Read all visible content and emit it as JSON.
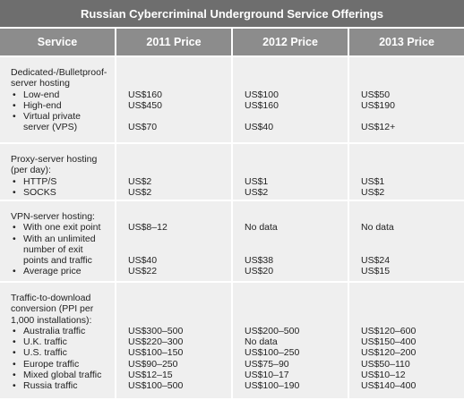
{
  "title": "Russian Cybercriminal Underground Service Offerings",
  "columns": [
    "Service",
    "2011 Price",
    "2012 Price",
    "2013 Price"
  ],
  "rows": [
    {
      "heading": "Dedicated-/Bulletproof-server hosting",
      "items": [
        {
          "label": "Low-end",
          "prices": [
            "US$160",
            "US$100",
            "US$50"
          ]
        },
        {
          "label": "High-end",
          "prices": [
            "US$450",
            "US$160",
            "US$190"
          ]
        },
        {
          "label": "Virtual private server (VPS)",
          "prices": [
            "US$70",
            "US$40",
            "US$12+"
          ]
        }
      ]
    },
    {
      "heading": "Proxy-server hosting (per day):",
      "items": [
        {
          "label": "HTTP/S",
          "prices": [
            "US$2",
            "US$1",
            "US$1"
          ]
        },
        {
          "label": "SOCKS",
          "prices": [
            "US$2",
            "US$2",
            "US$2"
          ]
        }
      ]
    },
    {
      "heading": "VPN-server hosting:",
      "items": [
        {
          "label": "With one exit point",
          "prices": [
            "US$8–12",
            "No data",
            "No data"
          ]
        },
        {
          "label": "With an unlimited number of exit points and traffic",
          "prices": [
            "US$40",
            "US$38",
            "US$24"
          ]
        },
        {
          "label": "Average price",
          "prices": [
            "US$22",
            "US$20",
            "US$15"
          ]
        }
      ]
    },
    {
      "heading": "Traffic-to-download conversion (PPI per 1,000 installations):",
      "items": [
        {
          "label": "Australia traffic",
          "prices": [
            "US$300–500",
            "US$200–500",
            "US$120–600"
          ]
        },
        {
          "label": "U.K. traffic",
          "prices": [
            "US$220–300",
            "No data",
            "US$150–400"
          ]
        },
        {
          "label": "U.S. traffic",
          "prices": [
            "US$100–150",
            "US$100–250",
            "US$120–200"
          ]
        },
        {
          "label": "Europe traffic",
          "prices": [
            "US$90–250",
            "US$75–90",
            "US$50–110"
          ]
        },
        {
          "label": "Mixed global traffic",
          "prices": [
            "US$12–15",
            "US$10–17",
            "US$10–12"
          ]
        },
        {
          "label": "Russia traffic",
          "prices": [
            "US$100–500",
            "US$100–190",
            "US$140–400"
          ]
        }
      ]
    }
  ]
}
